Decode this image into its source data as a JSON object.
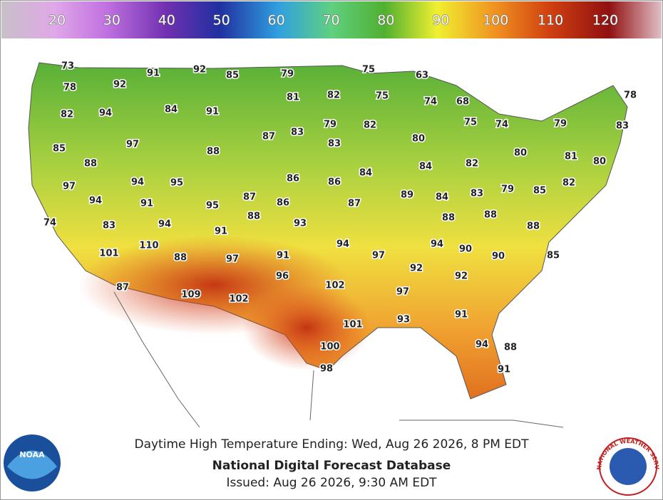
{
  "colorbar": {
    "labels": [
      20,
      30,
      40,
      50,
      60,
      70,
      80,
      90,
      100,
      110,
      120
    ]
  },
  "temperatures": [
    73,
    91,
    92,
    85,
    79,
    75,
    63,
    92,
    78,
    81,
    82,
    75,
    74,
    68,
    78,
    82,
    94,
    84,
    91,
    79,
    82,
    75,
    74,
    79,
    83,
    87,
    83,
    80,
    85,
    97,
    88,
    83,
    80,
    81,
    80,
    82,
    84,
    88,
    86,
    86,
    84,
    97,
    94,
    95,
    87,
    86,
    89,
    84,
    83,
    79,
    85,
    82,
    94,
    91,
    95,
    88,
    87,
    88,
    88,
    74,
    83,
    94,
    93,
    91,
    88,
    110,
    94,
    94,
    90,
    101,
    88,
    97,
    91,
    97,
    90,
    85,
    96,
    92,
    92,
    87,
    109,
    102,
    102,
    97,
    93,
    91,
    101,
    100,
    94,
    88,
    98,
    91
  ],
  "footer": {
    "line1": "Daytime High Temperature Ending: Wed, Aug 26 2026, 8 PM EDT",
    "line2": "National Digital Forecast Database",
    "line3": "Issued: Aug 26 2026, 9:30 AM EDT"
  },
  "logos": {
    "noaa": "NOAA",
    "nws": "NATIONAL WEATHER SERVICE"
  }
}
